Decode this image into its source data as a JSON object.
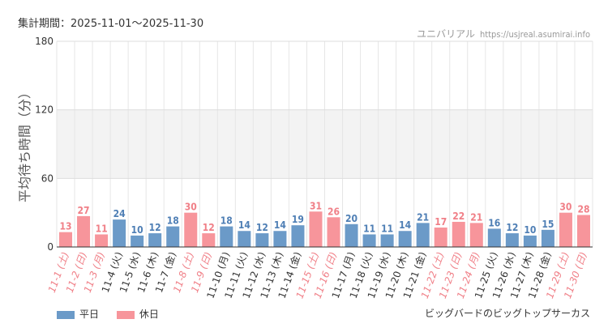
{
  "header": {
    "period": "集計期間：2025-11-01～2025-11-30",
    "site_name": "ユニバリアル",
    "site_url": "https://usjreal.asumirai.info"
  },
  "footer": {
    "attraction": "ビッグバードのビッグトップサーカス"
  },
  "legend": {
    "weekday": "平日",
    "holiday": "休日"
  },
  "colors": {
    "weekday": "#6b9ac8",
    "holiday": "#f7959b",
    "weekday_text": "#4f7fb5",
    "holiday_text": "#f07f87"
  },
  "chart_data": {
    "type": "bar",
    "ylabel": "平均待ち時間（分）",
    "ylim": [
      0,
      180
    ],
    "yticks": [
      0,
      60,
      120,
      180
    ],
    "categories": [
      "11-1 (土)",
      "11-2 (日)",
      "11-3 (月)",
      "11-4 (火)",
      "11-5 (水)",
      "11-6 (木)",
      "11-7 (金)",
      "11-8 (土)",
      "11-9 (日)",
      "11-10 (月)",
      "11-11 (火)",
      "11-12 (水)",
      "11-13 (木)",
      "11-14 (金)",
      "11-15 (土)",
      "11-16 (日)",
      "11-17 (月)",
      "11-18 (火)",
      "11-19 (水)",
      "11-20 (木)",
      "11-21 (金)",
      "11-22 (土)",
      "11-23 (日)",
      "11-24 (月)",
      "11-25 (火)",
      "11-26 (水)",
      "11-27 (木)",
      "11-28 (金)",
      "11-29 (土)",
      "11-30 (日)"
    ],
    "values": [
      13,
      27,
      11,
      24,
      10,
      12,
      18,
      30,
      12,
      18,
      14,
      12,
      14,
      19,
      31,
      26,
      20,
      11,
      11,
      14,
      21,
      17,
      22,
      21,
      16,
      12,
      10,
      15,
      30,
      28
    ],
    "holiday": [
      true,
      true,
      true,
      false,
      false,
      false,
      false,
      true,
      true,
      false,
      false,
      false,
      false,
      false,
      true,
      true,
      false,
      false,
      false,
      false,
      false,
      true,
      true,
      true,
      false,
      false,
      false,
      false,
      true,
      true
    ],
    "series": [
      {
        "name": "平日"
      },
      {
        "name": "休日"
      }
    ]
  }
}
